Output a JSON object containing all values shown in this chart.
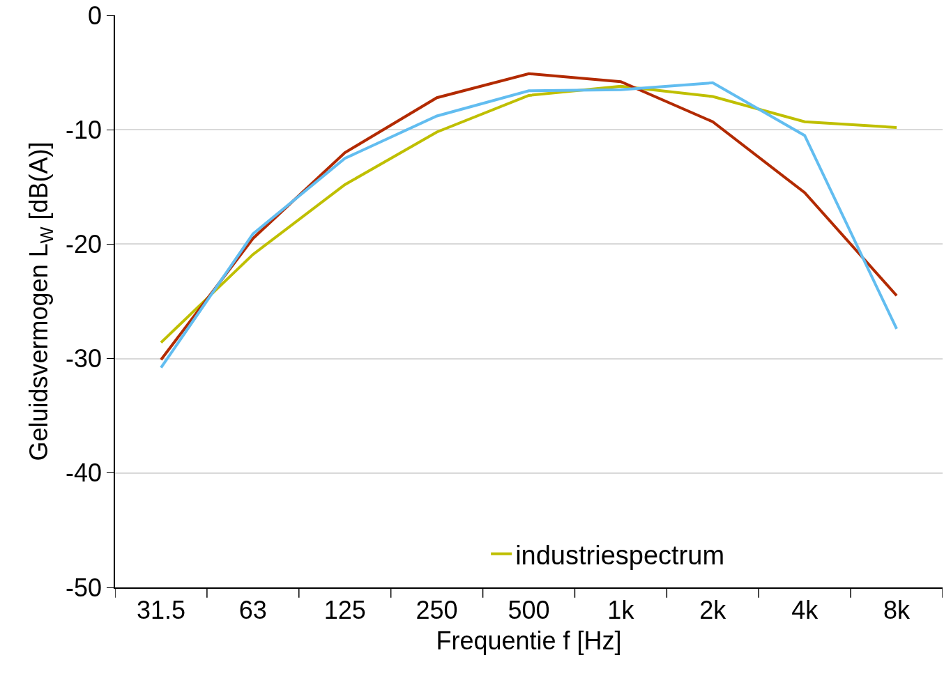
{
  "chart_data": {
    "type": "line",
    "xlabel": "Frequentie f [Hz]",
    "ylabel": "Geluidsvermogen L$_{W}$ [dB(A)]",
    "categories": [
      "31.5",
      "63",
      "125",
      "250",
      "500",
      "1k",
      "2k",
      "4k",
      "8k"
    ],
    "series": [
      {
        "name": "industriespectrum",
        "color": "#bfbf00",
        "values": [
          -28.6,
          -20.9,
          -14.8,
          -10.2,
          -7.0,
          -6.2,
          -7.1,
          -9.3,
          -9.8
        ]
      },
      {
        "color": "#b22a00",
        "values": [
          -30.1,
          -19.5,
          -12.0,
          -7.2,
          -5.1,
          -5.8,
          -9.3,
          -15.5,
          -24.5
        ]
      },
      {
        "color": "#62bdf0",
        "values": [
          -30.8,
          -19.1,
          -12.5,
          -8.8,
          -6.6,
          -6.5,
          -5.9,
          -10.5,
          -27.4
        ]
      }
    ],
    "ylim": [
      -50,
      0
    ],
    "yticks": [
      -50,
      -40,
      -30,
      -20,
      -10,
      0
    ],
    "grid": "y",
    "legend": "bottom right",
    "marker": "none",
    "line_style": "solid"
  }
}
